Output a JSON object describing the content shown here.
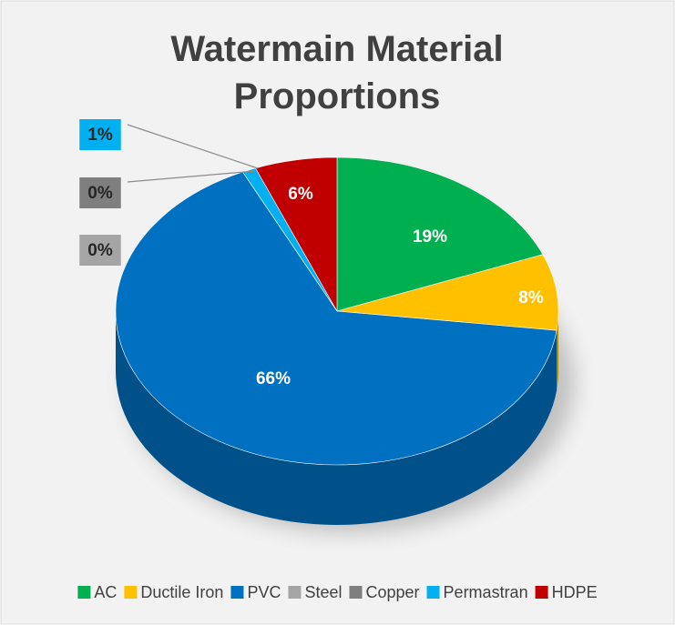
{
  "chart_data": {
    "type": "pie3d",
    "title": "Watermain Material Proportions",
    "categories": [
      "AC",
      "Ductile Iron",
      "PVC",
      "Steel",
      "Copper",
      "Permastran",
      "HDPE"
    ],
    "values": [
      19,
      8,
      66,
      0,
      0,
      1,
      6
    ],
    "value_labels": [
      "19%",
      "8%",
      "66%",
      "0%",
      "0%",
      "1%",
      "6%"
    ],
    "colors": [
      "#00b050",
      "#ffc000",
      "#0070c0",
      "#a5a5a5",
      "#7f7f7f",
      "#00b0f0",
      "#c00000"
    ],
    "legend": "bottom"
  }
}
